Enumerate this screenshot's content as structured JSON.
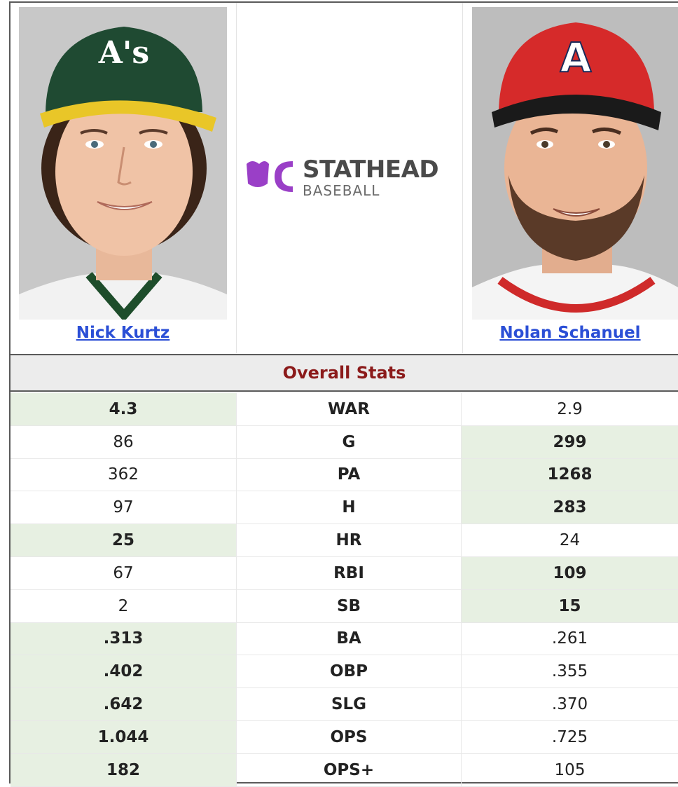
{
  "players": {
    "left": {
      "name": "Nick Kurtz",
      "cap_text": "A's"
    },
    "right": {
      "name": "Nolan Schanuel",
      "cap_text": "A"
    }
  },
  "logo": {
    "word": "STATHEAD",
    "sub": "BASEBALL"
  },
  "section_title": "Overall Stats",
  "stats": [
    {
      "label": "WAR",
      "left": "4.3",
      "right": "2.9",
      "leader": "left"
    },
    {
      "label": "G",
      "left": "86",
      "right": "299",
      "leader": "right"
    },
    {
      "label": "PA",
      "left": "362",
      "right": "1268",
      "leader": "right"
    },
    {
      "label": "H",
      "left": "97",
      "right": "283",
      "leader": "right"
    },
    {
      "label": "HR",
      "left": "25",
      "right": "24",
      "leader": "left"
    },
    {
      "label": "RBI",
      "left": "67",
      "right": "109",
      "leader": "right"
    },
    {
      "label": "SB",
      "left": "2",
      "right": "15",
      "leader": "right"
    },
    {
      "label": "BA",
      "left": ".313",
      "right": ".261",
      "leader": "left"
    },
    {
      "label": "OBP",
      "left": ".402",
      "right": ".355",
      "leader": "left"
    },
    {
      "label": "SLG",
      "left": ".642",
      "right": ".370",
      "leader": "left"
    },
    {
      "label": "OPS",
      "left": "1.044",
      "right": ".725",
      "leader": "left"
    },
    {
      "label": "OPS+",
      "left": "182",
      "right": "105",
      "leader": "left"
    }
  ],
  "colors": {
    "leader_bg": "#e7f0e2",
    "link": "#2b4fd6",
    "section_title": "#8b1a1a",
    "brand_purple": "#9a3fc7"
  }
}
